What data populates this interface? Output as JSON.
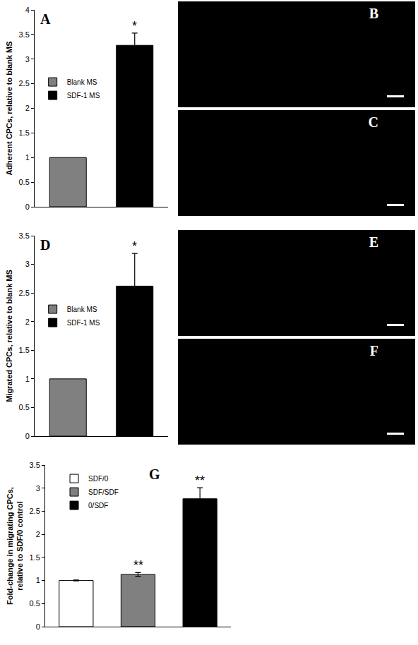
{
  "chart_data": [
    {
      "type": "bar",
      "panel_label": "A",
      "y_label": "Adherent CPCs, relative to blank MS",
      "categories": [
        null,
        null
      ],
      "series": [
        {
          "name": "Blank MS",
          "color": "#808080",
          "values": [
            1,
            null
          ]
        },
        {
          "name": "SDF-1 MS",
          "color": "#000000",
          "values": [
            null,
            3.28
          ],
          "errors": [
            null,
            0.25
          ]
        }
      ],
      "annotations": [
        {
          "text": "*",
          "index": 1
        }
      ],
      "ylim": [
        0,
        4
      ],
      "yticks": [
        0,
        0.5,
        1,
        1.5,
        2,
        2.5,
        3,
        3.5,
        4
      ],
      "grid": false,
      "legend": "center left",
      "tick_labels": "y"
    },
    {
      "type": "bar",
      "panel_label": "D",
      "y_label": "Migrated CPCs, relative to blank MS",
      "categories": [
        null,
        null
      ],
      "series": [
        {
          "name": "Blank MS",
          "color": "#808080",
          "values": [
            1,
            null
          ]
        },
        {
          "name": "SDF-1 MS",
          "color": "#000000",
          "values": [
            null,
            2.62
          ],
          "errors": [
            null,
            0.57
          ]
        }
      ],
      "annotations": [
        {
          "text": "*",
          "index": 1
        }
      ],
      "ylim": [
        0,
        3.5
      ],
      "yticks": [
        0,
        0.5,
        1,
        1.5,
        2,
        2.5,
        3,
        3.5
      ],
      "grid": false,
      "legend": "center left",
      "tick_labels": "y"
    },
    {
      "type": "bar",
      "panel_label": "G",
      "y_label": "Fold-change in migrating CPCs, relative to SDF/0 control",
      "categories": [
        null,
        null,
        null
      ],
      "series": [
        {
          "name": "SDF/0",
          "color": "#ffffff",
          "values": [
            1,
            null,
            null
          ],
          "errors": [
            0.01,
            null,
            null
          ]
        },
        {
          "name": "SDF/SDF",
          "color": "#808080",
          "values": [
            null,
            1.13,
            null
          ],
          "errors": [
            null,
            0.04,
            null
          ]
        },
        {
          "name": "0/SDF",
          "color": "#000000",
          "values": [
            null,
            null,
            2.77
          ],
          "errors": [
            null,
            null,
            0.24
          ]
        }
      ],
      "annotations": [
        {
          "text": "**",
          "index": 1
        },
        {
          "text": "**",
          "index": 2
        }
      ],
      "ylim": [
        0,
        3.5
      ],
      "yticks": [
        0,
        0.5,
        1,
        1.5,
        2,
        2.5,
        3,
        3.5
      ],
      "grid": false,
      "legend": "upper left",
      "tick_labels": "y"
    }
  ],
  "micrographs": [
    {
      "label": "B"
    },
    {
      "label": "C"
    },
    {
      "label": "E"
    },
    {
      "label": "F"
    }
  ]
}
